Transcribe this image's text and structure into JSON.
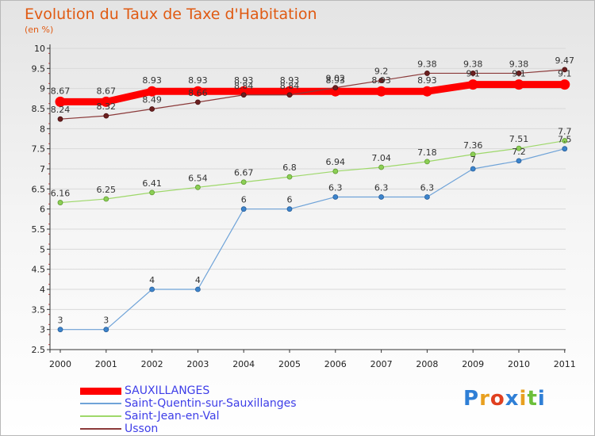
{
  "header": {
    "title": "Evolution du Taux de Taxe d'Habitation",
    "subtitle": "(en %)"
  },
  "logo": {
    "text": "Proxiti",
    "colors": [
      "#2f7fd6",
      "#e8a020",
      "#e04020",
      "#2f7fd6",
      "#e8a020",
      "#6cbf3a",
      "#2f7fd6"
    ]
  },
  "chart_data": {
    "type": "line",
    "title": "Evolution du Taux de Taxe d'Habitation",
    "ylabel": "(en %)",
    "xlabel": "",
    "x": [
      "2000",
      "2001",
      "2002",
      "2003",
      "2004",
      "2005",
      "2006",
      "2007",
      "2008",
      "2009",
      "2010",
      "2011"
    ],
    "ylim": [
      2.5,
      10
    ],
    "yticks": [
      "2.5",
      "3",
      "3.5",
      "4",
      "4.5",
      "5",
      "5.5",
      "6",
      "6.5",
      "7",
      "7.5",
      "8",
      "8.5",
      "9",
      "9.5",
      "10"
    ],
    "grid": "horizontal",
    "legend_position": "bottom-left",
    "series": [
      {
        "name": "SAUXILLANGES",
        "color": "#ff0000",
        "values": [
          8.67,
          8.67,
          8.93,
          8.93,
          8.93,
          8.93,
          8.93,
          8.93,
          8.93,
          9.1,
          9.1,
          9.1
        ],
        "labels": [
          "8.67",
          "8.67",
          "8.93",
          "8.93",
          "8.93",
          "8.93",
          "8.93",
          "8.93",
          "8.93",
          "9.1",
          "9.1",
          "9.1"
        ]
      },
      {
        "name": "Saint-Quentin-sur-Sauxillanges",
        "color": "#6fa3d8",
        "values": [
          3,
          3,
          4,
          4,
          6,
          6,
          6.3,
          6.3,
          6.3,
          7,
          7.2,
          7.5
        ],
        "labels": [
          "3",
          "3",
          "4",
          "4",
          "6",
          "6",
          "6.3",
          "6.3",
          "6.3",
          "7",
          "7.2",
          "7.5"
        ]
      },
      {
        "name": "Saint-Jean-en-Val",
        "color": "#9ed86a",
        "values": [
          6.16,
          6.25,
          6.41,
          6.54,
          6.67,
          6.8,
          6.94,
          7.04,
          7.18,
          7.36,
          7.51,
          7.7
        ],
        "labels": [
          "6.16",
          "6.25",
          "6.41",
          "6.54",
          "6.67",
          "6.8",
          "6.94",
          "7.04",
          "7.18",
          "7.36",
          "7.51",
          "7.7"
        ]
      },
      {
        "name": "Usson",
        "color": "#8b3a3a",
        "values": [
          8.24,
          8.32,
          8.49,
          8.66,
          8.84,
          8.84,
          9.02,
          9.2,
          9.38,
          9.38,
          9.38,
          9.47
        ],
        "labels": [
          "8.24",
          "8.32",
          "8.49",
          "8.66",
          "8.84",
          "8.84",
          "9.02",
          "9.2",
          "9.38",
          "9.38",
          "9.38",
          "9.47"
        ]
      }
    ]
  }
}
